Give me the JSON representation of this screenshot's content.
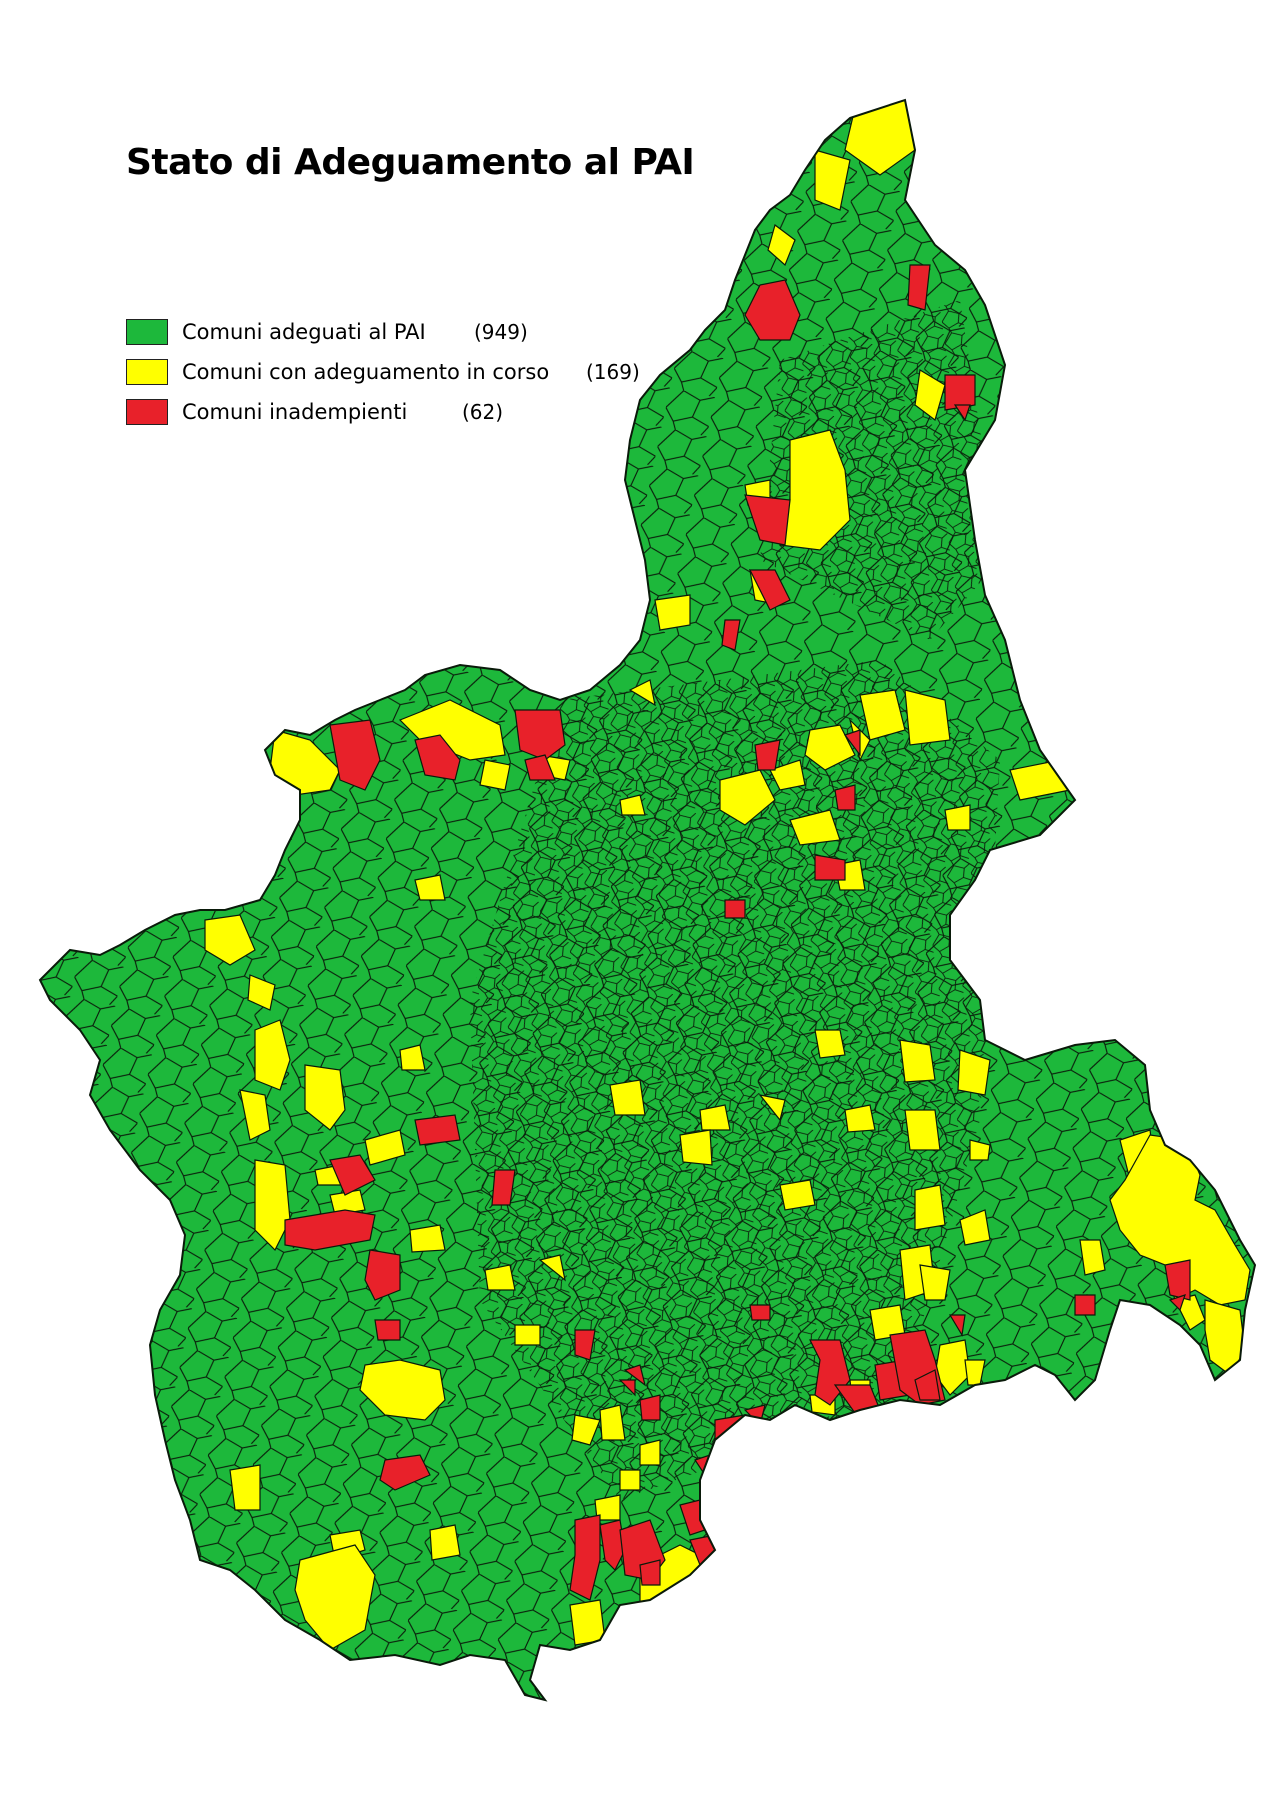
{
  "map": {
    "title": "Stato di Adeguamento al PAI",
    "legend": [
      {
        "label": "Comuni adeguati al PAI",
        "count": "(949)",
        "color": "#1db83b"
      },
      {
        "label": "Comuni con adeguamento in corso",
        "count": "(169)",
        "color": "#ffff00"
      },
      {
        "label": "Comuni inadempienti",
        "count": "(62)",
        "color": "#e8212a"
      }
    ],
    "colors": {
      "adeguati": "#1db83b",
      "in_corso": "#ffff00",
      "inadempienti": "#e8212a",
      "border": "#0a1a0a"
    }
  }
}
